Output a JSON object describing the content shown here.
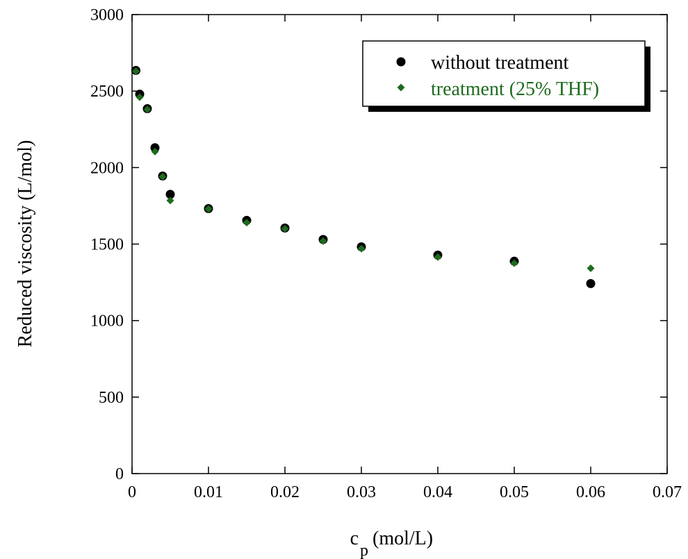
{
  "chart_data": {
    "type": "scatter",
    "title": "",
    "xlabel": "c",
    "xlabel_subscript": "p",
    "xlabel_suffix": "(mol/L)",
    "ylabel": "Reduced viscosity (L/mol)",
    "xlim": [
      0,
      0.07
    ],
    "ylim": [
      0,
      3000
    ],
    "xticks": [
      0,
      0.01,
      0.02,
      0.03,
      0.04,
      0.05,
      0.06,
      0.07
    ],
    "xtick_labels": [
      "0",
      "0.01",
      "0.02",
      "0.03",
      "0.04",
      "0.05",
      "0.06",
      "0.07"
    ],
    "yticks": [
      0,
      500,
      1000,
      1500,
      2000,
      2500,
      3000
    ],
    "ytick_labels": [
      "0",
      "500",
      "1000",
      "1500",
      "2000",
      "2500",
      "3000"
    ],
    "grid": false,
    "legend_position": "top-right",
    "series": [
      {
        "name": "without treatment",
        "marker": "circle",
        "color": "#000000",
        "x": [
          0.0005,
          0.001,
          0.002,
          0.003,
          0.004,
          0.005,
          0.01,
          0.015,
          0.02,
          0.025,
          0.03,
          0.04,
          0.05,
          0.06
        ],
        "y": [
          2635,
          2480,
          2385,
          2130,
          1945,
          1825,
          1732,
          1655,
          1605,
          1530,
          1482,
          1428,
          1388,
          1242
        ]
      },
      {
        "name": "treatment (25% THF)",
        "marker": "diamond",
        "color": "#1e6b1e",
        "x": [
          0.0005,
          0.001,
          0.002,
          0.003,
          0.004,
          0.005,
          0.01,
          0.015,
          0.02,
          0.025,
          0.03,
          0.04,
          0.05,
          0.06
        ],
        "y": [
          2630,
          2460,
          2380,
          2105,
          1940,
          1785,
          1730,
          1640,
          1600,
          1520,
          1470,
          1415,
          1375,
          1342
        ]
      }
    ]
  }
}
